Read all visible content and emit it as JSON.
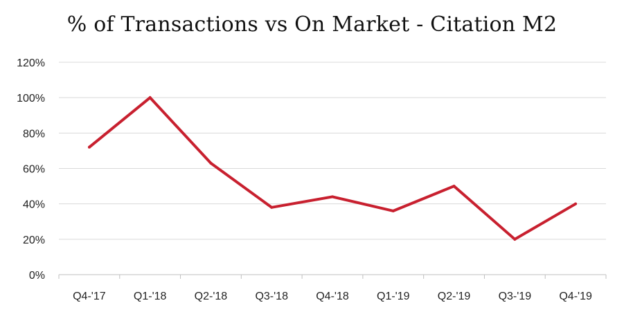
{
  "chart_data": {
    "type": "line",
    "title": "% of Transactions vs On Market - Citation M2",
    "xlabel": "",
    "ylabel": "",
    "categories": [
      "Q4-'17",
      "Q1-'18",
      "Q2-'18",
      "Q3-'18",
      "Q4-'18",
      "Q1-'19",
      "Q2-'19",
      "Q3-'19",
      "Q4-'19"
    ],
    "series": [
      {
        "values": [
          72,
          100,
          63,
          38,
          44,
          36,
          50,
          20,
          40
        ],
        "color": "#c8202f"
      }
    ],
    "ylim": [
      0,
      120
    ],
    "yticks": [
      0,
      20,
      40,
      60,
      80,
      100,
      120
    ],
    "ytick_format": "%",
    "grid": true,
    "legend": "none"
  }
}
